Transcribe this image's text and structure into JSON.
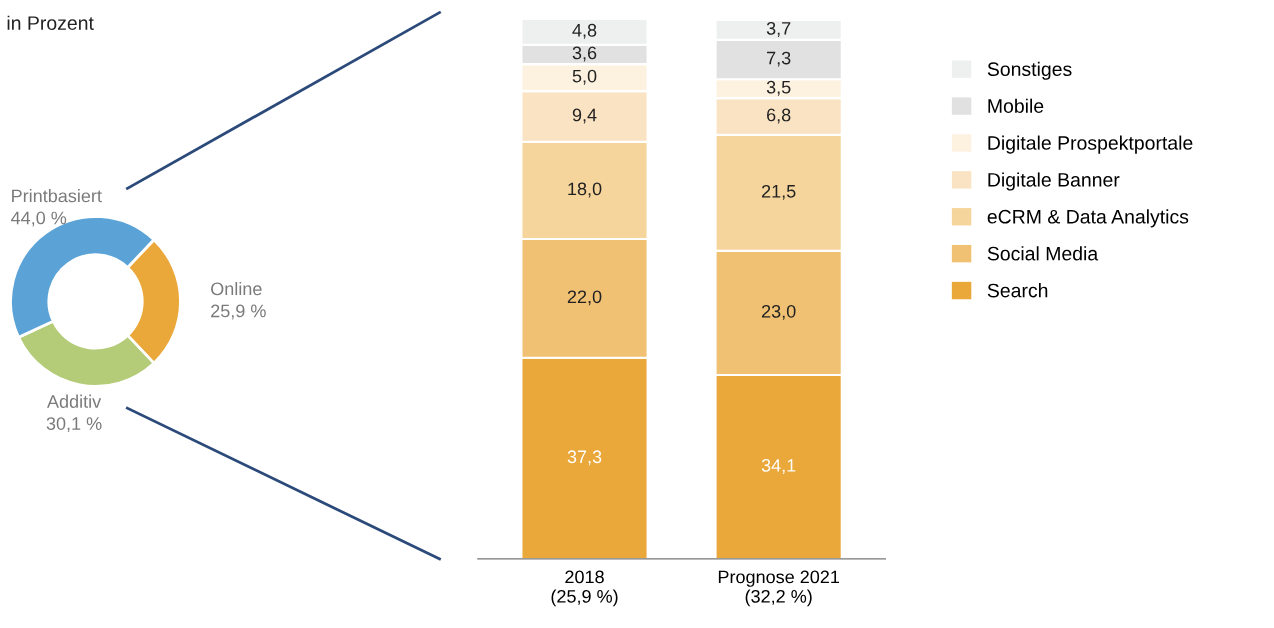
{
  "chart_data": [
    {
      "type": "donut",
      "title": "in Prozent",
      "categories": [
        "Online",
        "Additiv",
        "Printbasiert"
      ],
      "values": [
        25.9,
        30.1,
        44.0
      ],
      "colors": [
        "#eba83a",
        "#b4cc78",
        "#5ba3d6"
      ],
      "value_labels": [
        "25,9 %",
        "30,1 %",
        "44,0 %"
      ]
    },
    {
      "type": "bar",
      "stacked": true,
      "categories": [
        "2018\n(25,9 %)",
        "Prognose 2021\n(32,2 %)"
      ],
      "tick_labels": "x",
      "legend": "right",
      "series": [
        {
          "name": "Search",
          "color": "#eaa73a",
          "values": [
            37.3,
            34.1
          ],
          "value_labels": [
            "37,3",
            "34,1"
          ]
        },
        {
          "name": "Social Media",
          "color": "#f0c173",
          "values": [
            22.0,
            23.0
          ],
          "value_labels": [
            "22,0",
            "23,0"
          ]
        },
        {
          "name": "eCRM & Data Analytics",
          "color": "#f6d59c",
          "values": [
            18.0,
            21.5
          ],
          "value_labels": [
            "18,0",
            "21,5"
          ]
        },
        {
          "name": "Digitale Banner",
          "color": "#fae3c2",
          "values": [
            9.4,
            6.8
          ],
          "value_labels": [
            "9,4",
            "6,8"
          ]
        },
        {
          "name": "Digitale Prospektportale",
          "color": "#fdf1e0",
          "values": [
            5.0,
            3.5
          ],
          "value_labels": [
            "5,0",
            "3,5"
          ]
        },
        {
          "name": "Mobile",
          "color": "#e0e1e0",
          "values": [
            3.6,
            7.3
          ],
          "value_labels": [
            "3,6",
            "7,3"
          ]
        },
        {
          "name": "Sonstiges",
          "color": "#eef0ef",
          "values": [
            4.8,
            3.7
          ],
          "value_labels": [
            "4,8",
            "3,7"
          ]
        }
      ]
    }
  ]
}
